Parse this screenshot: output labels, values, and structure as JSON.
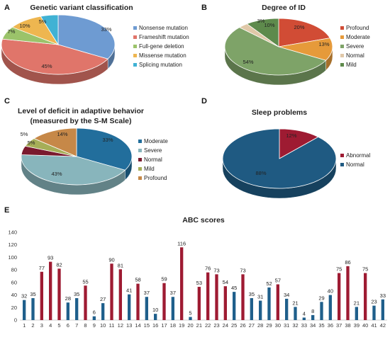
{
  "chart_data": [
    {
      "panel": "A",
      "type": "pie",
      "title": "Genetic variant classification",
      "categories": [
        "Nonsense mutation",
        "Frameshift mutation",
        "Full-gene deletion",
        "Missense mutation",
        "Splicing mutation"
      ],
      "values": [
        33,
        45,
        7,
        10,
        5
      ],
      "labels": [
        "33%",
        "45%",
        "7%",
        "10%",
        "5%"
      ],
      "colors": [
        "#6e9bd2",
        "#e0756a",
        "#9bc36a",
        "#eeb650",
        "#40b2d4"
      ],
      "legend": "right"
    },
    {
      "panel": "B",
      "type": "pie",
      "title": "Degree of ID",
      "categories": [
        "Profound",
        "Moderate",
        "Severe",
        "Normal",
        "Mild"
      ],
      "values": [
        20,
        13,
        54,
        3,
        10
      ],
      "labels": [
        "20%",
        "13%",
        "54%",
        "3%",
        "10%"
      ],
      "colors": [
        "#d14c35",
        "#e69a3a",
        "#7ea368",
        "#e0c8a8",
        "#5e8a4c"
      ],
      "legend": "right"
    },
    {
      "panel": "C",
      "type": "pie",
      "title": "Level of deficit in adaptive behavior",
      "subtitle": "(measured by the S-M Scale)",
      "categories": [
        "Moderate",
        "Severe",
        "Normal",
        "Mild",
        "Profound"
      ],
      "values": [
        33,
        43,
        5,
        5,
        14
      ],
      "labels": [
        "33%",
        "43%",
        "5%",
        "5%",
        "14%"
      ],
      "colors": [
        "#226e9c",
        "#88b5bc",
        "#7a1a2e",
        "#a6ae58",
        "#c68848"
      ],
      "legend": "right"
    },
    {
      "panel": "D",
      "type": "pie",
      "title": "Sleep problems",
      "categories": [
        "Abnormal",
        "Normal"
      ],
      "values": [
        12,
        88
      ],
      "labels": [
        "12%",
        "88%"
      ],
      "colors": [
        "#9e1b32",
        "#1f5a82"
      ],
      "legend": "right"
    },
    {
      "panel": "E",
      "type": "bar",
      "title": "ABC scores",
      "categories": [
        "1",
        "2",
        "3",
        "4",
        "5",
        "6",
        "7",
        "8",
        "9",
        "10",
        "11",
        "12",
        "13",
        "14",
        "15",
        "16",
        "17",
        "18",
        "19",
        "20",
        "21",
        "22",
        "23",
        "24",
        "25",
        "26",
        "27",
        "28",
        "29",
        "30",
        "31",
        "32",
        "33",
        "34",
        "35",
        "36",
        "37",
        "38",
        "39",
        "40",
        "41",
        "42"
      ],
      "values": [
        32,
        35,
        77,
        93,
        82,
        28,
        35,
        55,
        6,
        27,
        90,
        81,
        41,
        58,
        37,
        10,
        59,
        37,
        116,
        5,
        53,
        76,
        73,
        54,
        45,
        73,
        35,
        31,
        52,
        57,
        34,
        21,
        4,
        8,
        29,
        40,
        75,
        86,
        21,
        75,
        23,
        33
      ],
      "highlight_color": "#9e1b32",
      "base_color": "#1f5f8b",
      "ylim": [
        0,
        140
      ],
      "yticks": [
        0,
        20,
        40,
        60,
        80,
        100,
        120,
        140
      ]
    }
  ]
}
